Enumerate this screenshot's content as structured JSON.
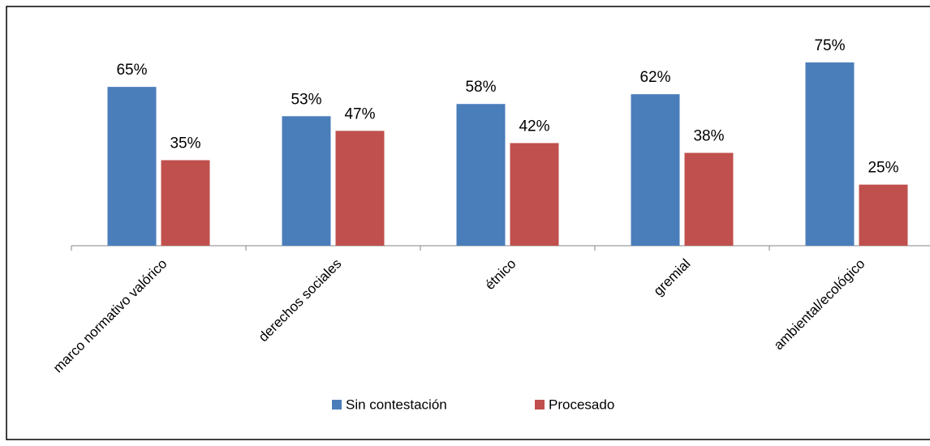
{
  "chart_data": {
    "type": "bar",
    "categories": [
      "marco normativo valórico",
      "derechos sociales",
      "étnico",
      "gremial",
      "ambiental/ecológico"
    ],
    "series": [
      {
        "name": "Sin contestación",
        "color": "#4a7ebb",
        "values": [
          65,
          53,
          58,
          62,
          75
        ],
        "value_labels": [
          "65%",
          "53%",
          "58%",
          "62%",
          "75%"
        ]
      },
      {
        "name": "Procesado",
        "color": "#c0504d",
        "values": [
          35,
          47,
          42,
          38,
          25
        ],
        "value_labels": [
          "35%",
          "47%",
          "42%",
          "38%",
          "25%"
        ]
      }
    ],
    "legend": "bottom"
  }
}
